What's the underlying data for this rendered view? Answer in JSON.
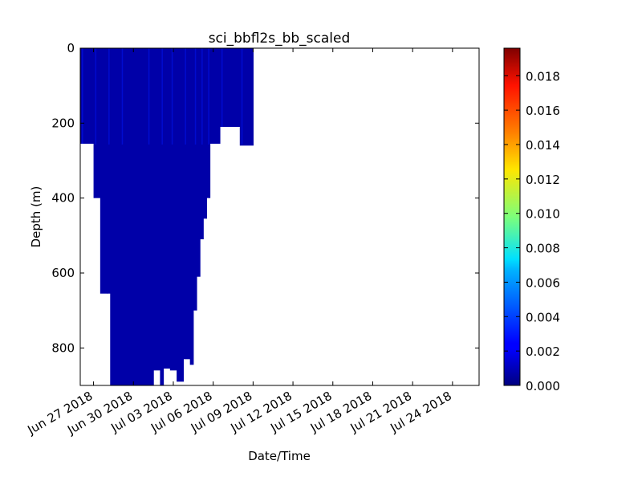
{
  "chart_data": {
    "type": "scatter",
    "title": "sci_bbfl2s_bb_scaled",
    "xlabel": "Date/Time",
    "ylabel": "Depth (m)",
    "x_type": "date",
    "xlim": [
      "2018-06-26",
      "2018-07-26"
    ],
    "ylim": [
      0,
      900
    ],
    "y_inverted": true,
    "x_ticks": [
      {
        "date": "2018-06-27",
        "label": "Jun 27 2018"
      },
      {
        "date": "2018-06-30",
        "label": "Jun 30 2018"
      },
      {
        "date": "2018-07-03",
        "label": "Jul 03 2018"
      },
      {
        "date": "2018-07-06",
        "label": "Jul 06 2018"
      },
      {
        "date": "2018-07-09",
        "label": "Jul 09 2018"
      },
      {
        "date": "2018-07-12",
        "label": "Jul 12 2018"
      },
      {
        "date": "2018-07-15",
        "label": "Jul 15 2018"
      },
      {
        "date": "2018-07-18",
        "label": "Jul 18 2018"
      },
      {
        "date": "2018-07-21",
        "label": "Jul 21 2018"
      },
      {
        "date": "2018-07-24",
        "label": "Jul 24 2018"
      }
    ],
    "y_ticks": [
      {
        "value": 0,
        "label": "0"
      },
      {
        "value": 200,
        "label": "200"
      },
      {
        "value": 400,
        "label": "400"
      },
      {
        "value": 600,
        "label": "600"
      },
      {
        "value": 800,
        "label": "800"
      }
    ],
    "colorbar": {
      "colormap": "jet",
      "range": [
        0,
        0.0196
      ],
      "ticks": [
        {
          "value": 0.0,
          "label": "0.000"
        },
        {
          "value": 0.002,
          "label": "0.002"
        },
        {
          "value": 0.004,
          "label": "0.004"
        },
        {
          "value": 0.006,
          "label": "0.006"
        },
        {
          "value": 0.008,
          "label": "0.008"
        },
        {
          "value": 0.01,
          "label": "0.010"
        },
        {
          "value": 0.012,
          "label": "0.012"
        },
        {
          "value": 0.014,
          "label": "0.014"
        },
        {
          "value": 0.016,
          "label": "0.016"
        },
        {
          "value": 0.018,
          "label": "0.018"
        }
      ]
    },
    "profile_envelope": [
      {
        "date": "2018-06-26T00:00",
        "max_depth": 255
      },
      {
        "date": "2018-06-26T12:00",
        "max_depth": 255
      },
      {
        "date": "2018-06-27T00:00",
        "max_depth": 400
      },
      {
        "date": "2018-06-27T12:00",
        "max_depth": 655
      },
      {
        "date": "2018-06-28T00:00",
        "max_depth": 655
      },
      {
        "date": "2018-06-28T06:00",
        "max_depth": 900
      },
      {
        "date": "2018-06-29T00:00",
        "max_depth": 900
      },
      {
        "date": "2018-06-30T00:00",
        "max_depth": 900
      },
      {
        "date": "2018-07-01T00:00",
        "max_depth": 900
      },
      {
        "date": "2018-07-01T12:00",
        "max_depth": 860
      },
      {
        "date": "2018-07-02T00:00",
        "max_depth": 900
      },
      {
        "date": "2018-07-02T06:00",
        "max_depth": 855
      },
      {
        "date": "2018-07-02T18:00",
        "max_depth": 860
      },
      {
        "date": "2018-07-03T06:00",
        "max_depth": 890
      },
      {
        "date": "2018-07-03T18:00",
        "max_depth": 830
      },
      {
        "date": "2018-07-04T06:00",
        "max_depth": 845
      },
      {
        "date": "2018-07-04T12:00",
        "max_depth": 700
      },
      {
        "date": "2018-07-04T18:00",
        "max_depth": 610
      },
      {
        "date": "2018-07-05T00:00",
        "max_depth": 510
      },
      {
        "date": "2018-07-05T06:00",
        "max_depth": 455
      },
      {
        "date": "2018-07-05T12:00",
        "max_depth": 400
      },
      {
        "date": "2018-07-05T18:00",
        "max_depth": 255
      },
      {
        "date": "2018-07-06T12:00",
        "max_depth": 210
      },
      {
        "date": "2018-07-07T12:00",
        "max_depth": 210
      },
      {
        "date": "2018-07-08T00:00",
        "max_depth": 260
      },
      {
        "date": "2018-07-09T00:00",
        "max_depth": 260
      }
    ],
    "value_range_observed": [
      0.0,
      0.003
    ]
  }
}
